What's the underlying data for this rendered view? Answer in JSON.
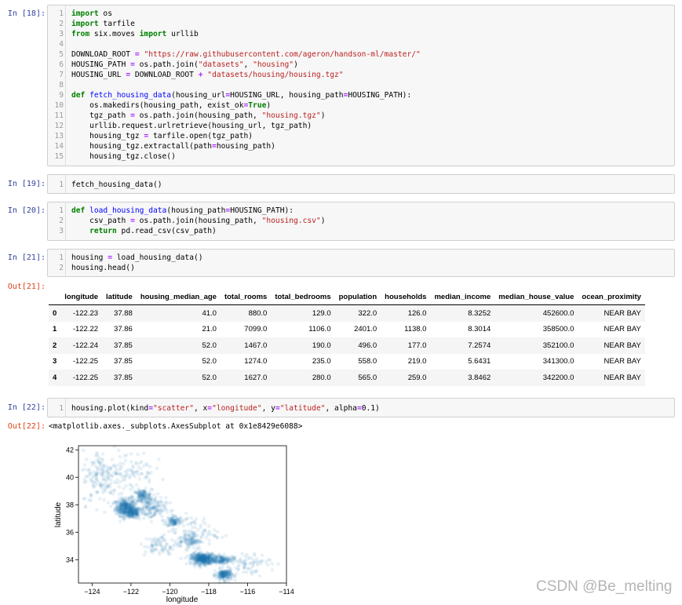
{
  "cells": {
    "c18": {
      "prompt": "In  [18]:",
      "lines": [
        [
          {
            "k": "kw",
            "t": "import"
          },
          {
            "k": "",
            "t": " os"
          }
        ],
        [
          {
            "k": "kw",
            "t": "import"
          },
          {
            "k": "",
            "t": " tarfile"
          }
        ],
        [
          {
            "k": "kw",
            "t": "from"
          },
          {
            "k": "",
            "t": " six.moves "
          },
          {
            "k": "kw",
            "t": "import"
          },
          {
            "k": "",
            "t": " urllib"
          }
        ],
        [],
        [
          {
            "k": "",
            "t": "DOWNLOAD_ROOT "
          },
          {
            "k": "op",
            "t": "="
          },
          {
            "k": "",
            "t": " "
          },
          {
            "k": "st",
            "t": "\"https://raw.githubusercontent.com/ageron/handson-ml/master/\""
          }
        ],
        [
          {
            "k": "",
            "t": "HOUSING_PATH "
          },
          {
            "k": "op",
            "t": "="
          },
          {
            "k": "",
            "t": " os.path.join("
          },
          {
            "k": "st",
            "t": "\"datasets\""
          },
          {
            "k": "",
            "t": ", "
          },
          {
            "k": "st",
            "t": "\"housing\""
          },
          {
            "k": "",
            "t": ")"
          }
        ],
        [
          {
            "k": "",
            "t": "HOUSING_URL "
          },
          {
            "k": "op",
            "t": "="
          },
          {
            "k": "",
            "t": " DOWNLOAD_ROOT "
          },
          {
            "k": "op",
            "t": "+"
          },
          {
            "k": "",
            "t": " "
          },
          {
            "k": "st",
            "t": "\"datasets/housing/housing.tgz\""
          }
        ],
        [],
        [
          {
            "k": "kw",
            "t": "def"
          },
          {
            "k": "",
            "t": " "
          },
          {
            "k": "fn",
            "t": "fetch_housing_data"
          },
          {
            "k": "",
            "t": "(housing_url"
          },
          {
            "k": "op",
            "t": "="
          },
          {
            "k": "",
            "t": "HOUSING_URL, housing_path"
          },
          {
            "k": "op",
            "t": "="
          },
          {
            "k": "",
            "t": "HOUSING_PATH):"
          }
        ],
        [
          {
            "k": "",
            "t": "    os.makedirs(housing_path, exist_ok"
          },
          {
            "k": "op",
            "t": "="
          },
          {
            "k": "kw",
            "t": "True"
          },
          {
            "k": "",
            "t": ")"
          }
        ],
        [
          {
            "k": "",
            "t": "    tgz_path "
          },
          {
            "k": "op",
            "t": "="
          },
          {
            "k": "",
            "t": " os.path.join(housing_path, "
          },
          {
            "k": "st",
            "t": "\"housing.tgz\""
          },
          {
            "k": "",
            "t": ")"
          }
        ],
        [
          {
            "k": "",
            "t": "    urllib.request.urlretrieve(housing_url, tgz_path)"
          }
        ],
        [
          {
            "k": "",
            "t": "    housing_tgz "
          },
          {
            "k": "op",
            "t": "="
          },
          {
            "k": "",
            "t": " tarfile.open(tgz_path)"
          }
        ],
        [
          {
            "k": "",
            "t": "    housing_tgz.extractall(path"
          },
          {
            "k": "op",
            "t": "="
          },
          {
            "k": "",
            "t": "housing_path)"
          }
        ],
        [
          {
            "k": "",
            "t": "    housing_tgz.close()"
          }
        ]
      ]
    },
    "c19": {
      "prompt": "In  [19]:",
      "lines": [
        [
          {
            "k": "",
            "t": "fetch_housing_data()"
          }
        ]
      ]
    },
    "c20": {
      "prompt": "In  [20]:",
      "lines": [
        [
          {
            "k": "kw",
            "t": "def"
          },
          {
            "k": "",
            "t": " "
          },
          {
            "k": "fn",
            "t": "load_housing_data"
          },
          {
            "k": "",
            "t": "(housing_path"
          },
          {
            "k": "op",
            "t": "="
          },
          {
            "k": "",
            "t": "HOUSING_PATH):"
          }
        ],
        [
          {
            "k": "",
            "t": "    csv_path "
          },
          {
            "k": "op",
            "t": "="
          },
          {
            "k": "",
            "t": " os.path.join(housing_path, "
          },
          {
            "k": "st",
            "t": "\"housing.csv\""
          },
          {
            "k": "",
            "t": ")"
          }
        ],
        [
          {
            "k": "",
            "t": "    "
          },
          {
            "k": "kw",
            "t": "return"
          },
          {
            "k": "",
            "t": " pd.read_csv(csv_path)"
          }
        ]
      ]
    },
    "c21": {
      "prompt": "In  [21]:",
      "lines": [
        [
          {
            "k": "",
            "t": "housing "
          },
          {
            "k": "op",
            "t": "="
          },
          {
            "k": "",
            "t": " load_housing_data()"
          }
        ],
        [
          {
            "k": "",
            "t": "housing.head()"
          }
        ]
      ],
      "out_prompt": "Out[21]:",
      "table": {
        "columns": [
          "",
          "longitude",
          "latitude",
          "housing_median_age",
          "total_rooms",
          "total_bedrooms",
          "population",
          "households",
          "median_income",
          "median_house_value",
          "ocean_proximity"
        ],
        "rows": [
          [
            "0",
            "-122.23",
            "37.88",
            "41.0",
            "880.0",
            "129.0",
            "322.0",
            "126.0",
            "8.3252",
            "452600.0",
            "NEAR BAY"
          ],
          [
            "1",
            "-122.22",
            "37.86",
            "21.0",
            "7099.0",
            "1106.0",
            "2401.0",
            "1138.0",
            "8.3014",
            "358500.0",
            "NEAR BAY"
          ],
          [
            "2",
            "-122.24",
            "37.85",
            "52.0",
            "1467.0",
            "190.0",
            "496.0",
            "177.0",
            "7.2574",
            "352100.0",
            "NEAR BAY"
          ],
          [
            "3",
            "-122.25",
            "37.85",
            "52.0",
            "1274.0",
            "235.0",
            "558.0",
            "219.0",
            "5.6431",
            "341300.0",
            "NEAR BAY"
          ],
          [
            "4",
            "-122.25",
            "37.85",
            "52.0",
            "1627.0",
            "280.0",
            "565.0",
            "259.0",
            "3.8462",
            "342200.0",
            "NEAR BAY"
          ]
        ]
      }
    },
    "c22": {
      "prompt": "In  [22]:",
      "lines": [
        [
          {
            "k": "",
            "t": "housing.plot(kind"
          },
          {
            "k": "op",
            "t": "="
          },
          {
            "k": "st",
            "t": "\"scatter\""
          },
          {
            "k": "",
            "t": ", x"
          },
          {
            "k": "op",
            "t": "="
          },
          {
            "k": "st",
            "t": "\"longitude\""
          },
          {
            "k": "",
            "t": ", y"
          },
          {
            "k": "op",
            "t": "="
          },
          {
            "k": "st",
            "t": "\"latitude\""
          },
          {
            "k": "",
            "t": ", alpha"
          },
          {
            "k": "op",
            "t": "="
          },
          {
            "k": "",
            "t": "0.1)"
          }
        ]
      ],
      "out_prompt": "Out[22]:",
      "out_text": "<matplotlib.axes._subplots.AxesSubplot at 0x1e8429e6088>"
    }
  },
  "chart_data": {
    "type": "scatter",
    "xlabel": "longitude",
    "ylabel": "latitude",
    "xlim": [
      -124.7,
      -114
    ],
    "ylim": [
      32.3,
      42.3
    ],
    "xticks": [
      -124,
      -122,
      -120,
      -118,
      -116,
      -114
    ],
    "xtick_labels": [
      "−124",
      "−122",
      "−120",
      "−118",
      "−116",
      "−114"
    ],
    "yticks": [
      34,
      36,
      38,
      40,
      42
    ],
    "ytick_labels": [
      "34",
      "36",
      "38",
      "40",
      "42"
    ],
    "alpha": 0.1,
    "color": "#1f77b4",
    "clusters": [
      {
        "x": -122.3,
        "y": 37.8,
        "sx": 0.25,
        "sy": 0.3,
        "n": 320
      },
      {
        "x": -121.9,
        "y": 37.4,
        "sx": 0.2,
        "sy": 0.2,
        "n": 160
      },
      {
        "x": -121.4,
        "y": 38.6,
        "sx": 0.25,
        "sy": 0.25,
        "n": 140
      },
      {
        "x": -119.8,
        "y": 36.8,
        "sx": 0.2,
        "sy": 0.2,
        "n": 90
      },
      {
        "x": -118.3,
        "y": 34.05,
        "sx": 0.3,
        "sy": 0.2,
        "n": 420
      },
      {
        "x": -117.2,
        "y": 32.9,
        "sx": 0.2,
        "sy": 0.2,
        "n": 180
      },
      {
        "x": -117.3,
        "y": 34.0,
        "sx": 0.3,
        "sy": 0.15,
        "n": 140
      },
      {
        "x": -121.0,
        "y": 37.7,
        "sx": 0.4,
        "sy": 0.4,
        "n": 140
      },
      {
        "x": -119.0,
        "y": 35.4,
        "sx": 0.3,
        "sy": 0.3,
        "n": 90
      },
      {
        "x": -123.5,
        "y": 40.0,
        "sx": 0.5,
        "sy": 1.0,
        "n": 150
      },
      {
        "x": -122.0,
        "y": 40.5,
        "sx": 0.6,
        "sy": 0.8,
        "n": 90
      },
      {
        "x": -116.0,
        "y": 33.7,
        "sx": 0.6,
        "sy": 0.4,
        "n": 70
      },
      {
        "x": -120.5,
        "y": 35.0,
        "sx": 0.4,
        "sy": 0.4,
        "n": 70
      },
      {
        "x": -118.8,
        "y": 36.0,
        "sx": 0.6,
        "sy": 0.6,
        "n": 90
      }
    ]
  },
  "watermark": "CSDN @Be_melting"
}
